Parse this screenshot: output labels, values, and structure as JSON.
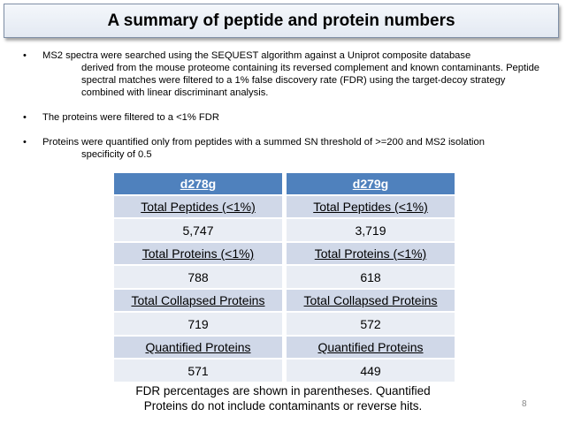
{
  "slide": {
    "title": "A summary of peptide and protein numbers",
    "bullets": [
      {
        "first": "MS2 spectra were searched using the SEQUEST algorithm against a Uniprot composite database",
        "rest": "derived from the mouse proteome containing its reversed complement and known contaminants. Peptide spectral matches were filtered to a 1% false discovery rate (FDR) using the target-decoy strategy combined with linear discriminant analysis."
      },
      {
        "first": "The proteins were filtered to a <1% FDR",
        "rest": ""
      },
      {
        "first": "Proteins were quantified only from peptides with a summed SN threshold of >=200 and MS2 isolation",
        "rest": "specificity of 0.5"
      }
    ],
    "bullet_char": "•",
    "tables": [
      {
        "header": "d278g",
        "rows": [
          {
            "label": "Total Peptides (<1%)",
            "value": "5,747"
          },
          {
            "label": "Total Proteins (<1%)",
            "value": "788"
          },
          {
            "label": "Total Collapsed Proteins",
            "value": "719"
          },
          {
            "label": "Quantified Proteins",
            "value": "571"
          }
        ]
      },
      {
        "header": "d279g",
        "rows": [
          {
            "label": "Total Peptides (<1%)",
            "value": "3,719"
          },
          {
            "label": "Total Proteins (<1%)",
            "value": "618"
          },
          {
            "label": "Total Collapsed Proteins",
            "value": "572"
          },
          {
            "label": "Quantified Proteins",
            "value": "449"
          }
        ]
      }
    ],
    "footnote_line1": "FDR percentages are shown in parentheses. Quantified",
    "footnote_line2": "Proteins do not include contaminants or reverse hits.",
    "page_number": "8",
    "colors": {
      "header_blue": "#4f81bd",
      "label_fill": "#d0d8e8",
      "value_fill": "#e9edf4"
    }
  }
}
